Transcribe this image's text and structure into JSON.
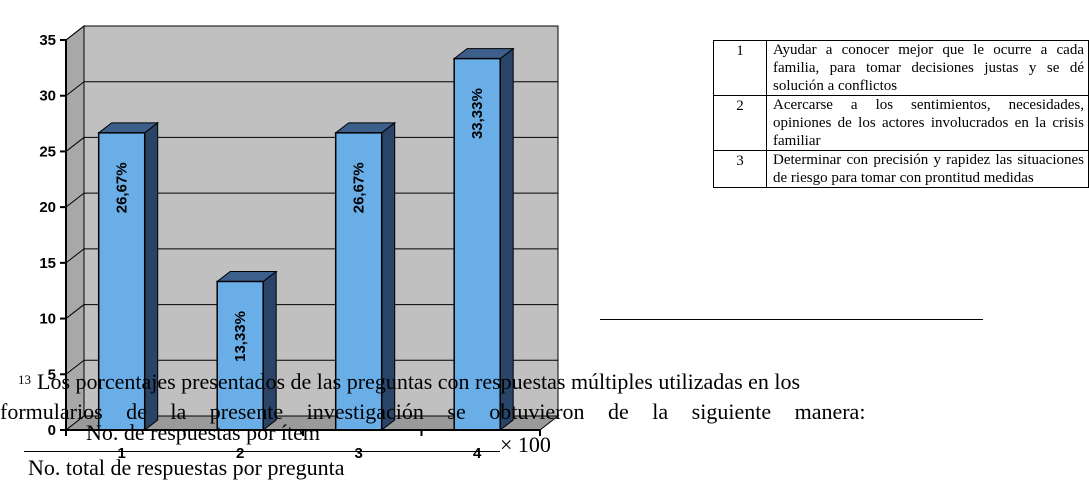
{
  "chart_data": {
    "type": "bar",
    "categories": [
      "1",
      "2",
      "3",
      "4"
    ],
    "values": [
      26.67,
      13.33,
      26.67,
      33.33
    ],
    "data_labels": [
      "26,67%",
      "13,33%",
      "26,67%",
      "33,33%"
    ],
    "ylim": [
      0,
      35
    ],
    "yticks": [
      "0",
      "5",
      "10",
      "15",
      "20",
      "25",
      "30",
      "35"
    ],
    "grid": true,
    "style": "3d-column",
    "colors": {
      "bar_front": "#6aaee8",
      "bar_side": "#2a4468",
      "bar_top": "#3d5f8c",
      "plot_bg": "#c0c0c0"
    }
  },
  "legend_table": {
    "rows": [
      {
        "num": "1",
        "text": "Ayudar a conocer mejor que le ocurre a cada familia, para tomar decisiones justas y se dé solución a conflictos"
      },
      {
        "num": "2",
        "text": "Acercarse a los sentimientos, necesidades, opiniones de los actores involucrados en la crisis familiar"
      },
      {
        "num": "3",
        "text": "Determinar con precisión y rapidez las situaciones de riesgo para tomar con prontitud medidas"
      }
    ]
  },
  "footnote": {
    "marker": "13",
    "line1": "Los porcentajes presentados de las preguntas con respuestas múltiples utilizadas en los",
    "line2": "formularios de la presente investigación se obtuvieron de la siguiente manera:"
  },
  "formula": {
    "numerator": "No. de respuestas por ítem",
    "denominator": "No. total de respuestas por pregunta",
    "multiplier": "× 100"
  }
}
